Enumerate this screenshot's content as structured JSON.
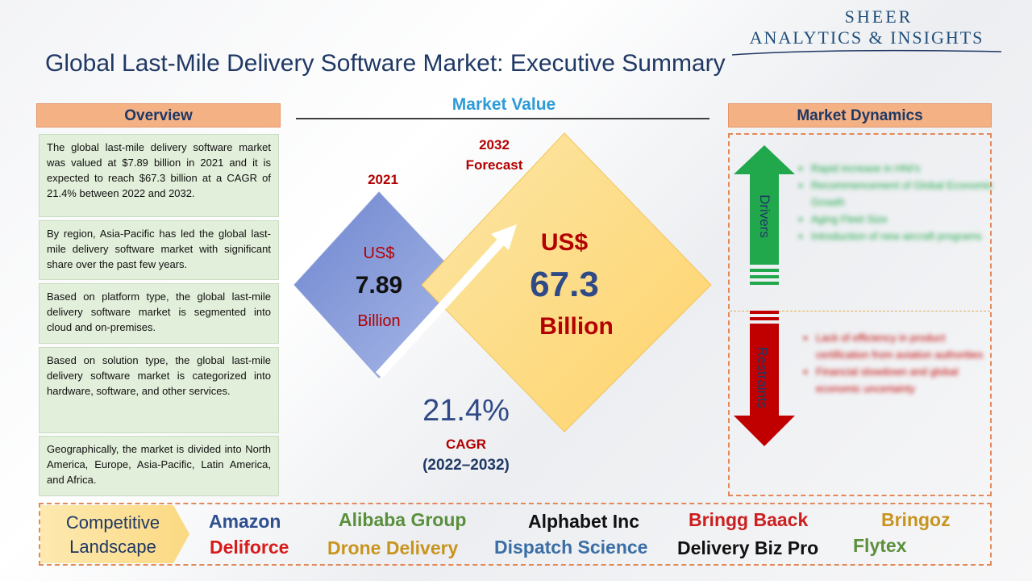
{
  "brand": {
    "line1": "SHEER",
    "line2": "ANALYTICS & INSIGHTS"
  },
  "title": "Global Last-Mile Delivery Software Market: Executive Summary",
  "overview": {
    "header": "Overview",
    "paragraphs": [
      "The global last-mile delivery software market was valued at $7.89 billion in 2021 and it is expected to reach $67.3 billion at a CAGR of 21.4% between 2022 and 2032.",
      "By region, Asia-Pacific has led the global last-mile delivery software market with significant share over the past few years.",
      "Based on platform type, the global last-mile delivery software market is segmented into cloud and on-premises.",
      "Based on solution type, the global last-mile delivery software market is categorized into hardware, software, and other services.",
      "Geographically, the market is divided into North America, Europe, Asia-Pacific, Latin America, and Africa."
    ]
  },
  "market_value": {
    "header": "Market Value",
    "y2021": {
      "year": "2021",
      "currency": "US$",
      "value": "7.89",
      "unit": "Billion"
    },
    "y2032": {
      "year": "2032",
      "label": "Forecast",
      "currency": "US$",
      "value": "67.3",
      "unit": "Billion"
    },
    "cagr": {
      "value": "21.4%",
      "label": "CAGR",
      "period": "(2022–2032)"
    }
  },
  "dynamics": {
    "header": "Market Dynamics",
    "drivers_label": "Drivers",
    "restraints_label": "Restraints",
    "drivers": [
      "Rapid increase in HNI's",
      "Recommencement of Global Economic Growth",
      "Aging Fleet Size",
      "Introduction of new aircraft programs"
    ],
    "restraints": [
      "Lack of efficiency in product certification from aviation authorities",
      "Financial slowdown and global economic uncertainty"
    ]
  },
  "competitive": {
    "label_line1": "Competitive",
    "label_line2": "Landscape",
    "companies": [
      {
        "name": "Amazon",
        "color": "#2f4f8f"
      },
      {
        "name": "Alibaba Group",
        "color": "#5a8f3c"
      },
      {
        "name": "Alphabet Inc",
        "color": "#111111"
      },
      {
        "name": "Bringg Baack",
        "color": "#cc1f1f"
      },
      {
        "name": "Bringoz",
        "color": "#c8941e"
      },
      {
        "name": "Deliforce",
        "color": "#d81b1b"
      },
      {
        "name": "Drone Delivery",
        "color": "#c8941e"
      },
      {
        "name": "Dispatch Science",
        "color": "#3a6ea5"
      },
      {
        "name": "Delivery Biz Pro",
        "color": "#111111"
      },
      {
        "name": "Flytex",
        "color": "#5a8f3c"
      }
    ]
  },
  "colors": {
    "accent_orange": "#f4b183",
    "overview_bg": "#e2efda",
    "driver_green": "#21a84c",
    "restraint_red": "#c00000",
    "navy": "#1f3864"
  }
}
